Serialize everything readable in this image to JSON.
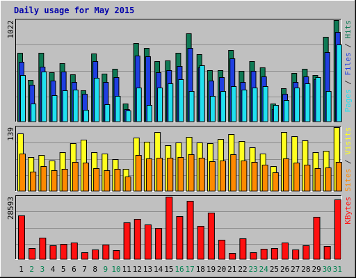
{
  "chart_data": {
    "type": "bar",
    "title": "Daily usage for May 2015",
    "categories": [
      "1",
      "2",
      "3",
      "4",
      "5",
      "6",
      "7",
      "8",
      "9",
      "10",
      "11",
      "12",
      "13",
      "14",
      "15",
      "16",
      "17",
      "18",
      "19",
      "20",
      "21",
      "22",
      "23",
      "24",
      "25",
      "26",
      "27",
      "28",
      "29",
      "30",
      "31"
    ],
    "weekend_days": [
      "2",
      "3",
      "9",
      "10",
      "16",
      "17",
      "23",
      "24",
      "30",
      "31"
    ],
    "colors": {
      "hits": "#0f7a55",
      "files": "#1f3fe0",
      "pages": "#20e0f0",
      "visits": "#ffff20",
      "sites": "#ff8a00",
      "kbytes": "#ff1010",
      "title": "#0000aa",
      "weekday_label": "#000000",
      "weekend_label": "#00804f"
    },
    "panels": [
      {
        "id": "hits-files-pages",
        "ymax_label": "1022",
        "ymax": 1022,
        "right_label_parts": [
          {
            "text": "Pages",
            "color": "#20e0f0"
          },
          {
            "text": " / ",
            "color": "#303030"
          },
          {
            "text": "Files",
            "color": "#1f3fe0"
          },
          {
            "text": " / ",
            "color": "#303030"
          },
          {
            "text": "Hits",
            "color": "#0f7a55"
          }
        ],
        "series": [
          {
            "name": "Hits",
            "key": "hits",
            "values": [
              692,
              420,
              692,
              500,
              590,
              478,
              313,
              687,
              485,
              530,
              185,
              790,
              745,
              612,
              617,
              694,
              886,
              680,
              519,
              520,
              720,
              510,
              610,
              545,
              185,
              338,
              490,
              535,
              470,
              855,
              1022
            ]
          },
          {
            "name": "Files",
            "key": "files",
            "values": [
              600,
              370,
              555,
              410,
              503,
              400,
              280,
              612,
              400,
              450,
              125,
              665,
              655,
              495,
              520,
              560,
              740,
              545,
              415,
              450,
              640,
              398,
              510,
              455,
              125,
              280,
              400,
              455,
              425,
              700,
              900
            ]
          },
          {
            "name": "Pages",
            "key": "pages",
            "values": [
              468,
              185,
              505,
              265,
              315,
              320,
              120,
              440,
              175,
              257,
              110,
              340,
              170,
              340,
              385,
              425,
              310,
              570,
              260,
              305,
              355,
              325,
              345,
              355,
              165,
              218,
              340,
              385,
              450,
              310,
              775
            ]
          }
        ]
      },
      {
        "id": "visits-sites",
        "ymax_label": "139",
        "ymax": 139,
        "right_label_parts": [
          {
            "text": "Sites",
            "color": "#ff8a00"
          },
          {
            "text": " / ",
            "color": "#303030"
          },
          {
            "text": "Visits",
            "color": "#ffff20"
          }
        ],
        "series": [
          {
            "name": "Visits",
            "key": "visits",
            "values": [
              125,
              74,
              79,
              67,
              84,
              104,
              112,
              84,
              82,
              70,
              49,
              116,
              108,
              128,
              99,
              106,
              118,
              106,
              104,
              114,
              124,
              109,
              95,
              82,
              55,
              128,
              120,
              110,
              85,
              88,
              139
            ]
          },
          {
            "name": "Sites",
            "key": "sites",
            "values": [
              81,
              43,
              55,
              46,
              49,
              63,
              62,
              50,
              46,
              48,
              31,
              79,
              71,
              73,
              72,
              74,
              80,
              73,
              65,
              67,
              80,
              66,
              64,
              57,
              41,
              71,
              62,
              57,
              50,
              52,
              63
            ]
          }
        ]
      },
      {
        "id": "kbytes",
        "ymax_label": "28593",
        "ymax": 28593,
        "right_label_parts": [
          {
            "text": "KBytes",
            "color": "#ff1010"
          }
        ],
        "series": [
          {
            "name": "KBytes",
            "key": "kbytes",
            "values": [
              20000,
              5000,
              10000,
              6400,
              7000,
              7500,
              3200,
              4500,
              6800,
              4000,
              16700,
              18400,
              16000,
              14200,
              28593,
              19700,
              26600,
              15300,
              21200,
              8900,
              3000,
              9400,
              3200,
              4800,
              5000,
              7500,
              4300,
              6200,
              19300,
              5900,
              27400
            ]
          }
        ]
      }
    ]
  }
}
